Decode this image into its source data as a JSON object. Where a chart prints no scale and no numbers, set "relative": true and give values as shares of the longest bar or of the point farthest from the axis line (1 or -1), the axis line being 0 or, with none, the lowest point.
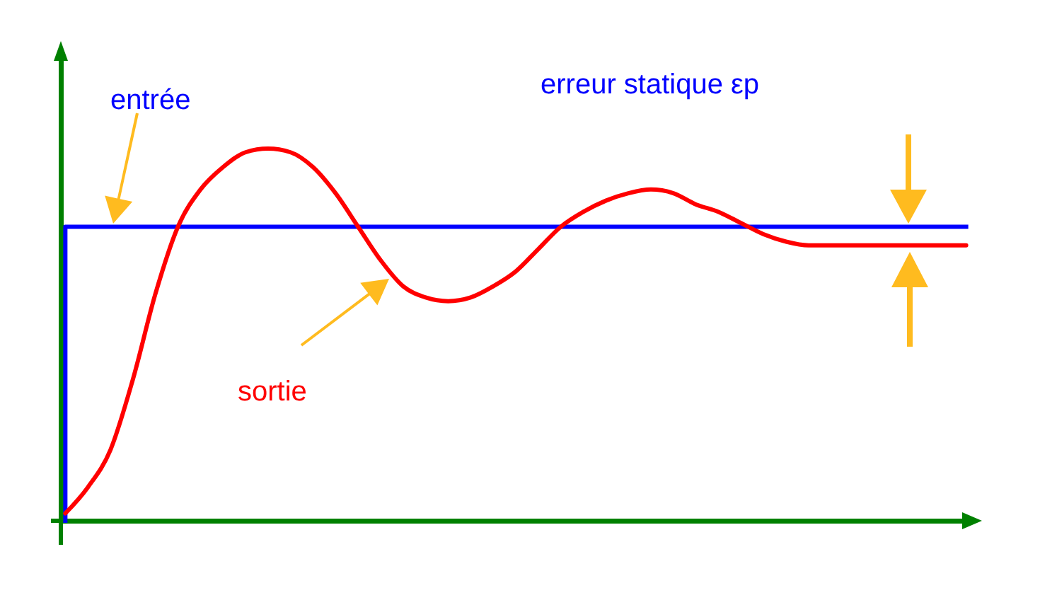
{
  "chart_data": {
    "type": "line",
    "relative": true,
    "categories": [
      null,
      null,
      null,
      null,
      null,
      null,
      null,
      null,
      null,
      null,
      null,
      null,
      null,
      null,
      null,
      null,
      null,
      null,
      null,
      null,
      null,
      null,
      null,
      null,
      null,
      null,
      null,
      null,
      null,
      null,
      null,
      null,
      null,
      null,
      null,
      null,
      null,
      null,
      null,
      null,
      null
    ],
    "series": [
      {
        "name": "entrée",
        "type": "step",
        "color": "#0000ff",
        "values": [
          0,
          0.79,
          0.79,
          0.79,
          0.79,
          0.79,
          0.79,
          0.79,
          0.79,
          0.79,
          0.79,
          0.79,
          0.79,
          0.79,
          0.79,
          0.79,
          0.79,
          0.79,
          0.79,
          0.79,
          0.79,
          0.79,
          0.79,
          0.79,
          0.79,
          0.79,
          0.79,
          0.79,
          0.79,
          0.79,
          0.79,
          0.79,
          0.79,
          0.79,
          0.79,
          0.79,
          0.79,
          0.79,
          0.79,
          0.79,
          0.79
        ]
      },
      {
        "name": "sortie",
        "color": "#ff0000",
        "values": [
          0.02,
          0.09,
          0.19,
          0.38,
          0.61,
          0.79,
          0.89,
          0.95,
          0.99,
          1.0,
          0.99,
          0.95,
          0.88,
          0.79,
          0.7,
          0.63,
          0.6,
          0.59,
          0.6,
          0.63,
          0.67,
          0.73,
          0.79,
          0.83,
          0.86,
          0.88,
          0.89,
          0.88,
          0.85,
          0.83,
          0.8,
          0.77,
          0.75,
          0.74,
          0.74,
          0.74,
          0.74,
          0.74,
          0.74,
          0.74,
          0.74
        ]
      }
    ],
    "annotations": [
      "erreur statique εp"
    ],
    "legend": false
  }
}
